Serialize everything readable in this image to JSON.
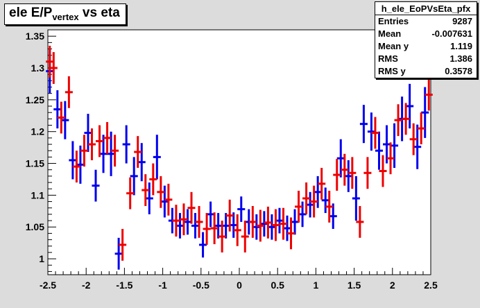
{
  "title": {
    "prefix": "ele E/P",
    "sub": "vertex",
    "suffix": " vs eta"
  },
  "stats": {
    "name": "h_ele_EoPVsEta_pfx",
    "rows": [
      {
        "label": "Entries",
        "value": "9287"
      },
      {
        "label": "Mean",
        "value": "-0.007631"
      },
      {
        "label": "Mean y",
        "value": "1.119"
      },
      {
        "label": "RMS",
        "value": "1.386"
      },
      {
        "label": "RMS y",
        "value": "0.3578"
      }
    ]
  },
  "colors": {
    "background": "#dcdcdc",
    "plot_bg": "#ffffff",
    "series_blue": "#0000ee",
    "series_red": "#ee0000"
  },
  "chart_data": {
    "type": "scatter",
    "title": "ele E/Pvertex vs eta",
    "xlabel": "",
    "ylabel": "",
    "xlim": [
      -2.5,
      2.5
    ],
    "ylim": [
      0.975,
      1.36
    ],
    "xticks": [
      -2.5,
      -2,
      -1.5,
      -1,
      -0.5,
      0,
      0.5,
      1,
      1.5,
      2,
      2.5
    ],
    "xtick_labels": [
      "-2.5",
      "-2",
      "-1.5",
      "-1",
      "-0.5",
      "0",
      "0.5",
      "1",
      "1.5",
      "2",
      "2.5"
    ],
    "yticks": [
      1,
      1.05,
      1.1,
      1.15,
      1.2,
      1.25,
      1.3,
      1.35
    ],
    "ytick_labels": [
      "1",
      "1.05",
      "1.1",
      "1.15",
      "1.2",
      "1.25",
      "1.3",
      "1.35"
    ],
    "grid": false,
    "series": [
      {
        "color": "#0000ee",
        "x": [
          -2.475,
          -2.375,
          -2.275,
          -2.175,
          -2.075,
          -1.975,
          -1.875,
          -1.775,
          -1.675,
          -1.575,
          -1.475,
          -1.375,
          -1.275,
          -1.175,
          -1.075,
          -0.975,
          -0.875,
          -0.775,
          -0.675,
          -0.575,
          -0.475,
          -0.375,
          -0.275,
          -0.175,
          -0.075,
          0.025,
          0.125,
          0.225,
          0.325,
          0.425,
          0.525,
          0.625,
          0.725,
          0.825,
          0.925,
          1.025,
          1.125,
          1.225,
          1.325,
          1.425,
          1.525,
          1.625,
          1.725,
          1.825,
          1.925,
          2.025,
          2.125,
          2.225,
          2.325,
          2.425
        ],
        "y": [
          1.295,
          1.235,
          1.218,
          1.155,
          1.148,
          1.198,
          1.115,
          1.165,
          1.165,
          1.008,
          1.18,
          1.13,
          1.152,
          1.095,
          1.16,
          1.09,
          1.06,
          1.052,
          1.058,
          1.052,
          1.022,
          1.07,
          1.052,
          1.052,
          1.053,
          1.078,
          1.058,
          1.05,
          1.055,
          1.05,
          1.06,
          1.048,
          1.058,
          1.07,
          1.085,
          1.105,
          1.092,
          1.067,
          1.158,
          1.13,
          1.095,
          1.212,
          1.2,
          1.17,
          1.18,
          1.178,
          1.22,
          1.24,
          1.176,
          1.23
        ],
        "err": [
          0.035,
          0.03,
          0.03,
          0.03,
          0.03,
          0.03,
          0.025,
          0.03,
          0.035,
          0.025,
          0.03,
          0.03,
          0.03,
          0.025,
          0.035,
          0.025,
          0.02,
          0.02,
          0.02,
          0.02,
          0.02,
          0.02,
          0.02,
          0.02,
          0.02,
          0.02,
          0.02,
          0.02,
          0.02,
          0.02,
          0.02,
          0.02,
          0.02,
          0.02,
          0.02,
          0.025,
          0.02,
          0.02,
          0.03,
          0.025,
          0.035,
          0.03,
          0.03,
          0.03,
          0.03,
          0.035,
          0.035,
          0.035,
          0.035,
          0.04
        ]
      },
      {
        "color": "#ee0000",
        "x": [
          -2.475,
          -2.425,
          -2.325,
          -2.225,
          -2.125,
          -2.025,
          -1.925,
          -1.825,
          -1.725,
          -1.625,
          -1.525,
          -1.425,
          -1.325,
          -1.225,
          -1.125,
          -1.025,
          -0.925,
          -0.825,
          -0.725,
          -0.625,
          -0.525,
          -0.425,
          -0.325,
          -0.225,
          -0.125,
          -0.025,
          0.075,
          0.175,
          0.275,
          0.375,
          0.475,
          0.575,
          0.675,
          0.775,
          0.875,
          0.975,
          1.075,
          1.175,
          1.275,
          1.375,
          1.475,
          1.575,
          1.675,
          1.775,
          1.875,
          1.975,
          2.075,
          2.175,
          2.275,
          2.375,
          2.475
        ],
        "y": [
          1.31,
          1.3,
          1.222,
          1.262,
          1.145,
          1.17,
          1.18,
          1.185,
          1.19,
          1.17,
          1.022,
          1.103,
          1.168,
          1.108,
          1.125,
          1.105,
          1.093,
          1.06,
          1.062,
          1.08,
          1.058,
          1.047,
          1.048,
          1.035,
          1.068,
          1.045,
          1.035,
          1.058,
          1.052,
          1.057,
          1.053,
          1.055,
          1.04,
          1.082,
          1.095,
          1.09,
          1.118,
          1.082,
          1.132,
          1.14,
          1.135,
          1.058,
          1.135,
          1.198,
          1.138,
          1.158,
          1.218,
          1.22,
          1.188,
          1.205,
          1.258
        ]
      }
    ]
  }
}
